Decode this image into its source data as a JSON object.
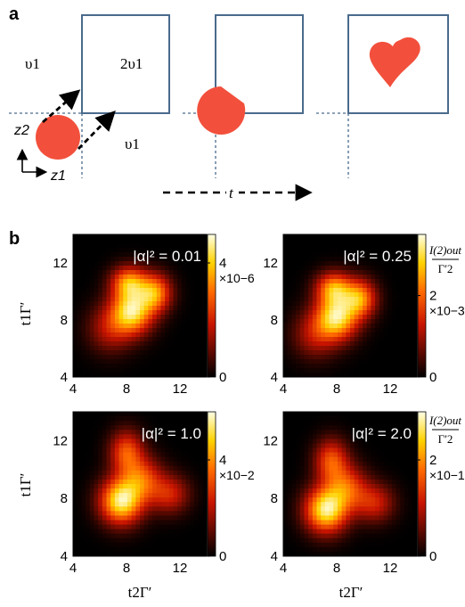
{
  "panel_a": {
    "label": "a",
    "region_left_top": "υ1",
    "region_right_top": "2υ1",
    "region_bottom": "υ1",
    "axis_z2": "z2",
    "axis_z1": "z1",
    "time_label": "t",
    "colors": {
      "box": "#4a6b8c",
      "photon": "#f2503c",
      "arrow": "#000000"
    }
  },
  "panel_b": {
    "label": "b",
    "ylabel": "t1Γ′",
    "xlabel": "t2Γ′",
    "colorbar_title_top": "I(2)out",
    "colorbar_title_bottom": "Γ′2"
  },
  "chart_data": [
    {
      "type": "heatmap",
      "title": "|α|² = 0.01",
      "xlim": [
        4,
        14
      ],
      "ylim": [
        4,
        14
      ],
      "xticks": [
        "4",
        "8",
        "12"
      ],
      "yticks": [
        "4",
        "8",
        "12"
      ],
      "colorbar": {
        "ticks": [
          "0",
          "4"
        ],
        "multiplier": "×10−6",
        "range": [
          0,
          5
        ]
      },
      "peak": {
        "x": 8.4,
        "y": 8.6
      },
      "shape": "heart"
    },
    {
      "type": "heatmap",
      "title": "|α|² = 0.25",
      "xlim": [
        4,
        14
      ],
      "ylim": [
        4,
        14
      ],
      "xticks": [
        "4",
        "8",
        "12"
      ],
      "yticks": [
        "4",
        "8",
        "12"
      ],
      "colorbar": {
        "ticks": [
          "0",
          "2"
        ],
        "multiplier": "×10−3",
        "range": [
          0,
          3.5
        ]
      },
      "peak": {
        "x": 8.0,
        "y": 8.2
      },
      "shape": "heart"
    },
    {
      "type": "heatmap",
      "title": "|α|² = 1.0",
      "xlim": [
        4,
        14
      ],
      "ylim": [
        4,
        14
      ],
      "xticks": [
        "4",
        "8",
        "12"
      ],
      "yticks": [
        "4",
        "8",
        "12"
      ],
      "colorbar": {
        "ticks": [
          "0",
          "4"
        ],
        "multiplier": "×10−2",
        "range": [
          0,
          6
        ]
      },
      "peak": {
        "x": 7.6,
        "y": 7.8
      },
      "shape": "drop"
    },
    {
      "type": "heatmap",
      "title": "|α|² = 2.0",
      "xlim": [
        4,
        14
      ],
      "ylim": [
        4,
        14
      ],
      "xticks": [
        "4",
        "8",
        "12"
      ],
      "yticks": [
        "4",
        "8",
        "12"
      ],
      "colorbar": {
        "ticks": [
          "0",
          "2"
        ],
        "multiplier": "×10−1",
        "range": [
          0,
          3
        ]
      },
      "peak": {
        "x": 7.2,
        "y": 7.2
      },
      "shape": "drop"
    }
  ]
}
